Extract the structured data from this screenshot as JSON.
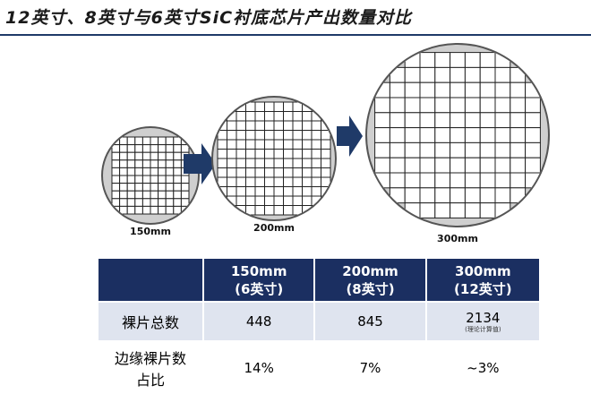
{
  "title": "12英寸、8英寸与6英寸SiC衬底芯片产出数量对比",
  "wafers": [
    {
      "label": "150mm",
      "grid": 10
    },
    {
      "label": "200mm",
      "grid": 13
    },
    {
      "label": "300mm",
      "grid": 11
    }
  ],
  "table": {
    "headers": [
      {
        "line1": "",
        "line2": ""
      },
      {
        "line1": "150mm",
        "line2": "(6英寸)"
      },
      {
        "line1": "200mm",
        "line2": "(8英寸)"
      },
      {
        "line1": "300mm",
        "line2": "(12英寸)"
      }
    ],
    "rows": [
      {
        "label": "裸片总数",
        "values": [
          "448",
          "845",
          "2134"
        ],
        "note": "(理论计算值)"
      },
      {
        "label": "边缘裸片数占比",
        "values": [
          "14%",
          "7%",
          "~3%"
        ]
      }
    ]
  },
  "colors": {
    "header_bg": "#1b2f61",
    "row1_bg": "#dfe4ef",
    "arrow": "#1f3a68",
    "wafer_fill": "#cfcfcf"
  }
}
